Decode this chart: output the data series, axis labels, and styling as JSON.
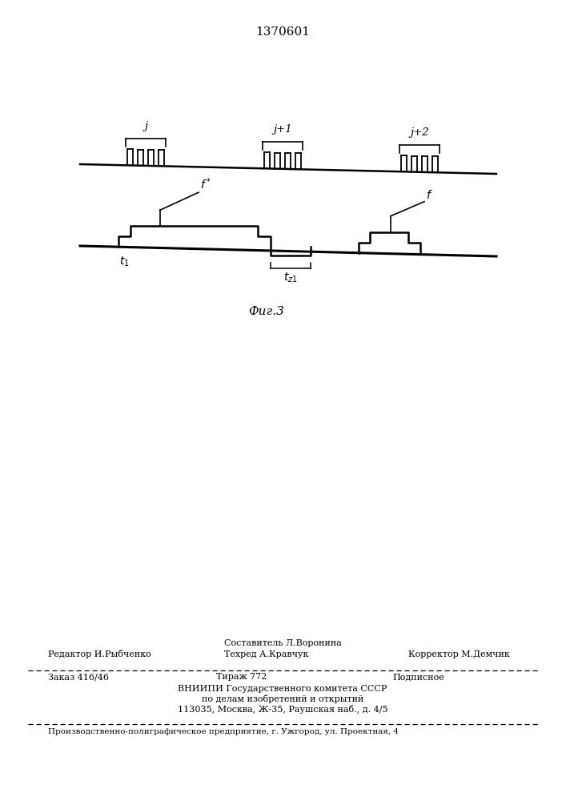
{
  "title": "1370601",
  "fig_caption": "Фиг.3",
  "background_color": "#ffffff",
  "line_color": "#000000",
  "fig_width": 7.07,
  "fig_height": 10.0,
  "footer_line1": "Составитель Л.Воронина",
  "footer_line2_left": "Редактор И.Рыбченко",
  "footer_line2_mid": "Техред А.Кравчук",
  "footer_line2_right": "Корректор М.Демчик",
  "footer_line3_left": "Заказ 416/46",
  "footer_line3_mid": "Тираж 772",
  "footer_line3_right": "Подписное",
  "footer_line4": "ВНИИПИ Государственного комитета СССР",
  "footer_line5": "по делам изобретений и открытий",
  "footer_line6": "113035, Москва, Ж-35, Раушская наб., д. 4/5",
  "footer_line7": "Производственно-полиграфическое предприятие, г. Ужгород, ул. Проектная, 4"
}
